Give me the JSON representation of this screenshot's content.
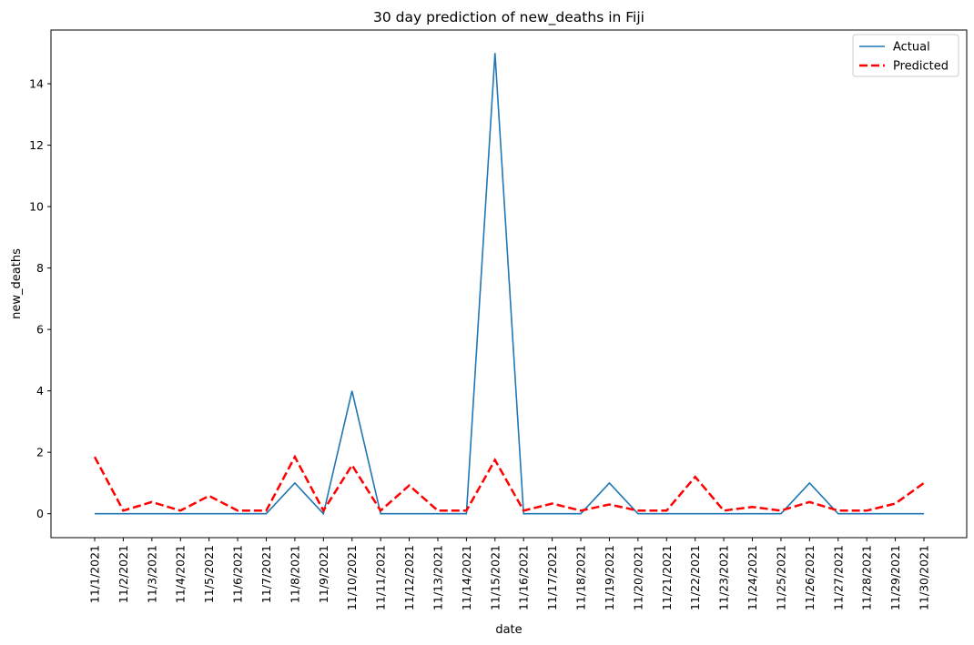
{
  "chart_data": {
    "type": "line",
    "title": "30 day prediction of new_deaths in Fiji",
    "xlabel": "date",
    "ylabel": "new_deaths",
    "ylim": [
      -0.78,
      15.75
    ],
    "yticks": [
      0,
      2,
      4,
      6,
      8,
      10,
      12,
      14
    ],
    "grid": false,
    "legend_position": "top-right",
    "categories": [
      "11/1/2021",
      "11/2/2021",
      "11/3/2021",
      "11/4/2021",
      "11/5/2021",
      "11/6/2021",
      "11/7/2021",
      "11/8/2021",
      "11/9/2021",
      "11/10/2021",
      "11/11/2021",
      "11/12/2021",
      "11/13/2021",
      "11/14/2021",
      "11/15/2021",
      "11/16/2021",
      "11/17/2021",
      "11/18/2021",
      "11/19/2021",
      "11/20/2021",
      "11/21/2021",
      "11/22/2021",
      "11/23/2021",
      "11/24/2021",
      "11/25/2021",
      "11/26/2021",
      "11/27/2021",
      "11/28/2021",
      "11/29/2021",
      "11/30/2021"
    ],
    "series": [
      {
        "name": "Actual",
        "color": "#1f77b4",
        "style": "solid",
        "values": [
          0,
          0,
          0,
          0,
          0,
          0,
          0,
          1,
          0,
          4,
          0,
          0,
          0,
          0,
          15,
          0,
          0,
          0,
          1,
          0,
          0,
          0,
          0,
          0,
          0,
          1,
          0,
          0,
          0,
          0
        ]
      },
      {
        "name": "Predicted",
        "color": "#ff0000",
        "style": "dashed",
        "values": [
          1.85,
          0.1,
          0.38,
          0.1,
          0.58,
          0.1,
          0.1,
          1.85,
          0.1,
          1.58,
          0.1,
          0.92,
          0.1,
          0.1,
          1.75,
          0.1,
          0.33,
          0.1,
          0.3,
          0.1,
          0.1,
          1.2,
          0.1,
          0.22,
          0.1,
          0.38,
          0.1,
          0.1,
          0.33,
          1.0
        ]
      }
    ]
  }
}
